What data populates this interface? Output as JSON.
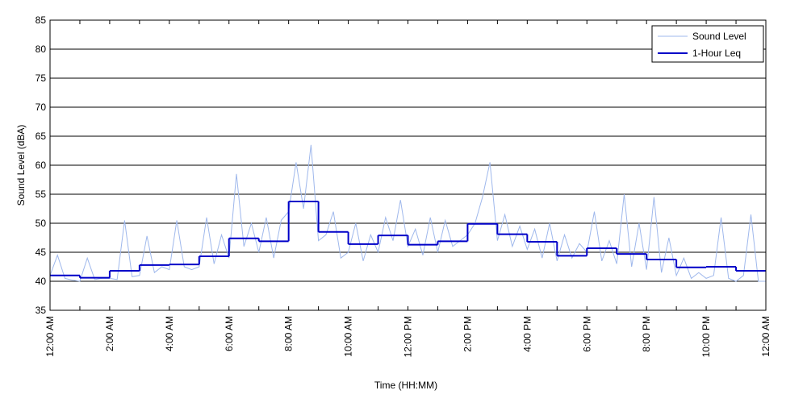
{
  "chart_data": {
    "type": "line",
    "xlabel": "Time (HH:MM)",
    "ylabel": "Sound Level (dBA)",
    "xlim": [
      0,
      24
    ],
    "xticks": [
      {
        "value": 0,
        "label": "12:00 AM"
      },
      {
        "value": 2,
        "label": "2:00 AM"
      },
      {
        "value": 4,
        "label": "4:00 AM"
      },
      {
        "value": 6,
        "label": "6:00 AM"
      },
      {
        "value": 8,
        "label": "8:00 AM"
      },
      {
        "value": 10,
        "label": "10:00 AM"
      },
      {
        "value": 12,
        "label": "12:00 PM"
      },
      {
        "value": 14,
        "label": "2:00 PM"
      },
      {
        "value": 16,
        "label": "4:00 PM"
      },
      {
        "value": 18,
        "label": "6:00 PM"
      },
      {
        "value": 20,
        "label": "8:00 PM"
      },
      {
        "value": 22,
        "label": "10:00 PM"
      },
      {
        "value": 24,
        "label": "12:00 AM"
      }
    ],
    "xminorticks": [
      1,
      3,
      5,
      7,
      9,
      11,
      13,
      15,
      17,
      19,
      21,
      23
    ],
    "ylim": [
      35,
      85
    ],
    "yticks": [
      35,
      40,
      45,
      50,
      55,
      60,
      65,
      70,
      75,
      80,
      85
    ],
    "grid": true,
    "legend": "upper right",
    "series": [
      {
        "name": "Sound Level",
        "color": "#9fb8ec",
        "style": "line",
        "x": [
          0,
          0.25,
          0.5,
          0.75,
          1,
          1.25,
          1.5,
          1.75,
          2,
          2.25,
          2.5,
          2.75,
          3,
          3.25,
          3.5,
          3.75,
          4,
          4.25,
          4.5,
          4.75,
          5,
          5.25,
          5.5,
          5.75,
          6,
          6.25,
          6.5,
          6.75,
          7,
          7.25,
          7.5,
          7.75,
          8,
          8.25,
          8.5,
          8.75,
          9,
          9.25,
          9.5,
          9.75,
          10,
          10.25,
          10.5,
          10.75,
          11,
          11.25,
          11.5,
          11.75,
          12,
          12.25,
          12.5,
          12.75,
          13,
          13.25,
          13.5,
          13.75,
          14,
          14.25,
          14.5,
          14.75,
          15,
          15.25,
          15.5,
          15.75,
          16,
          16.25,
          16.5,
          16.75,
          17,
          17.25,
          17.5,
          17.75,
          18,
          18.25,
          18.5,
          18.75,
          19,
          19.25,
          19.5,
          19.75,
          20,
          20.25,
          20.5,
          20.75,
          21,
          21.25,
          21.5,
          21.75,
          22,
          22.25,
          22.5,
          22.75,
          23,
          23.25,
          23.5,
          23.75,
          24
        ],
        "values": [
          41,
          44.5,
          40.5,
          40.2,
          40,
          44,
          40.3,
          40.5,
          40.5,
          40.3,
          50.5,
          40.8,
          41,
          47.8,
          41.5,
          42.5,
          42,
          50.5,
          42.5,
          42,
          42.5,
          51,
          43,
          48,
          44,
          58.5,
          46,
          50,
          45,
          51,
          44,
          50.5,
          52,
          60.5,
          52.5,
          63.5,
          47,
          48,
          52,
          44,
          45,
          50,
          43.5,
          48,
          45,
          51,
          47,
          54,
          46,
          49,
          44.5,
          51,
          45,
          50.5,
          46,
          47,
          48,
          50,
          54.5,
          60.5,
          47,
          51.5,
          46,
          49.5,
          45.5,
          49,
          44,
          50,
          43.5,
          48,
          44,
          46.5,
          45,
          52,
          43.5,
          47,
          43,
          55,
          42.5,
          50,
          42,
          54.5,
          41.5,
          47.5,
          41,
          44,
          40.5,
          41.5,
          40.5,
          41,
          51,
          40.5,
          40,
          41,
          51.5,
          40,
          40
        ]
      },
      {
        "name": "1-Hour Leq",
        "color": "#0000c8",
        "style": "step",
        "x": [
          0,
          1,
          2,
          3,
          4,
          5,
          6,
          7,
          8,
          9,
          10,
          11,
          12,
          13,
          14,
          15,
          16,
          17,
          18,
          19,
          20,
          21,
          22,
          23
        ],
        "values": [
          41.0,
          40.6,
          41.8,
          42.8,
          42.9,
          44.3,
          47.4,
          46.9,
          53.75,
          48.5,
          46.4,
          47.9,
          46.3,
          46.9,
          49.9,
          48.1,
          46.8,
          44.4,
          45.7,
          44.7,
          43.75,
          42.4,
          42.5,
          41.8
        ]
      }
    ]
  }
}
